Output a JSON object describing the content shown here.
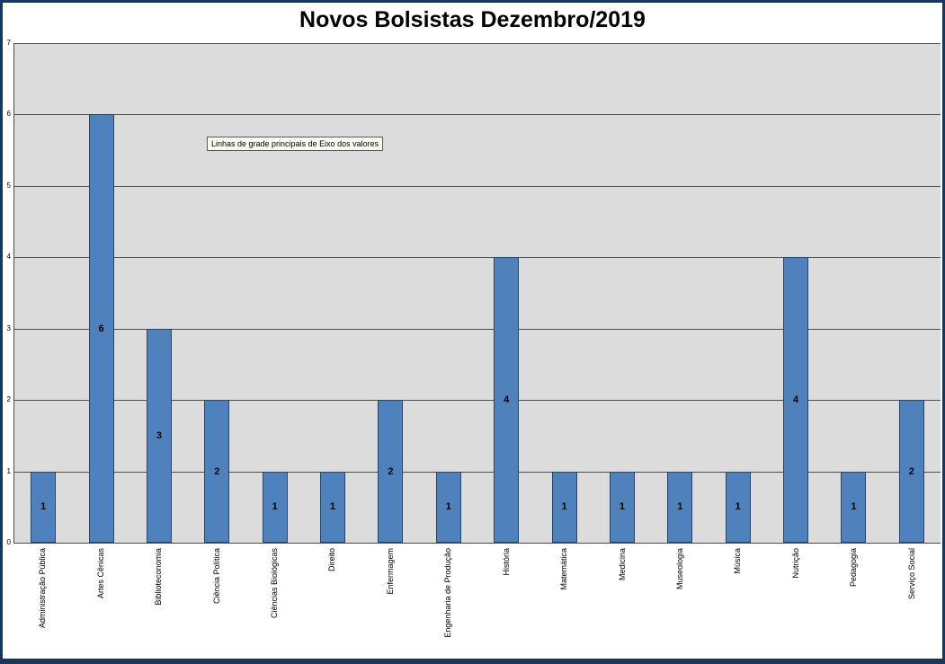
{
  "chart_data": {
    "type": "bar",
    "title": "Novos Bolsistas Dezembro/2019",
    "categories": [
      "Administração Pública",
      "Artes Cênicas",
      "Biblioteconomia",
      "Ciência Política",
      "Ciências Biológicas",
      "Direito",
      "Enfermagem",
      "Engenharia de Produção",
      "História",
      "Matemática",
      "Medicina",
      "Museologia",
      "Música",
      "Nutrição",
      "Pedagogia",
      "Serviço Social"
    ],
    "values": [
      1,
      6,
      3,
      2,
      1,
      1,
      2,
      1,
      4,
      1,
      1,
      1,
      1,
      4,
      1,
      2
    ],
    "data_labels": [
      1,
      6,
      3,
      2,
      1,
      1,
      2,
      1,
      4,
      1,
      1,
      1,
      1,
      4,
      1,
      2
    ],
    "xlabel": "",
    "ylabel": "",
    "ylim": [
      0,
      7
    ],
    "yticks": [
      0,
      1,
      2,
      3,
      4,
      5,
      6,
      7
    ],
    "grid": true,
    "legend": false,
    "tooltip": "Linhas de grade principais de Eixo dos valores",
    "colors": {
      "bar_fill": "#4F81BD",
      "bar_border": "#24466B",
      "plot_background": "#DCDCDC",
      "gridline": "#4d4d4d",
      "frame_border": "#17375E",
      "text": "#000000"
    }
  }
}
